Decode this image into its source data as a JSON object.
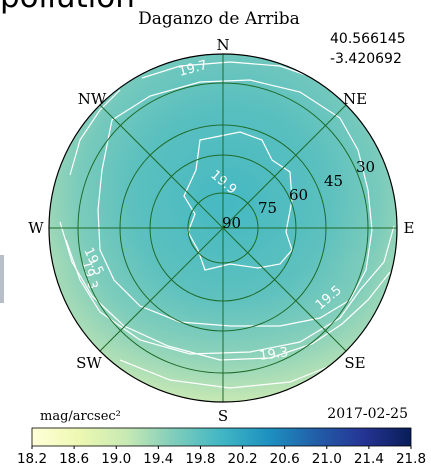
{
  "page_heading_fragment": "pollution",
  "chart_data": {
    "type": "polar-contour",
    "title": "Daganzo de Arriba",
    "coordinates": {
      "latitude": "40.566145",
      "longitude": "-3.420692"
    },
    "date": "2017-02-25",
    "colorbar_label": "mag/arcsec²",
    "compass": [
      "N",
      "NE",
      "E",
      "SE",
      "S",
      "SW",
      "W",
      "NW"
    ],
    "altitude_ticks": [
      "90",
      "75",
      "60",
      "45",
      "30"
    ],
    "colorbar_ticks": [
      "18.2",
      "18.6",
      "19.0",
      "19.4",
      "19.8",
      "20.2",
      "20.6",
      "21.0",
      "21.4",
      "21.8"
    ],
    "colorbar_range": [
      18.2,
      21.8
    ],
    "contour_labels": [
      "19.7",
      "19.9",
      "19.5",
      "19.3",
      "19.5",
      "19.3"
    ],
    "colors": {
      "sky_center": "#45b9c2",
      "sky_mid": "#64c3bd",
      "sky_edge_low": "#bfe5b8",
      "sky_edge_high": "#88d0bc",
      "grid": "#1d6b2a",
      "contour": "#ffffff",
      "colormap": [
        "#ffffd9",
        "#edf8b1",
        "#c7e9b4",
        "#7fcdbb",
        "#41b6c4",
        "#1d91c0",
        "#225ea8",
        "#253494",
        "#081d58"
      ]
    }
  }
}
